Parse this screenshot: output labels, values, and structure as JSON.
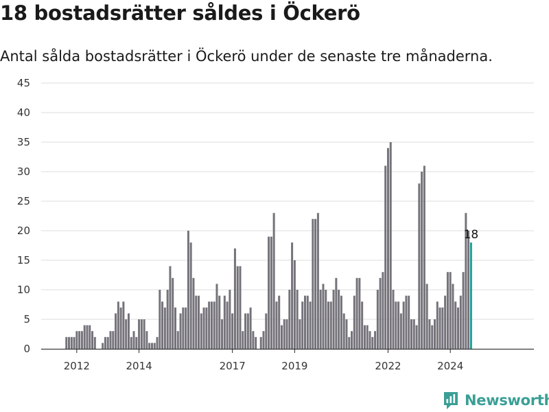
{
  "header": {
    "title": "18 bostadsrätter såldes i Öckerö",
    "subtitle": "Antal sålda bostadsrätter i Öckerö under de senaste tre månaderna."
  },
  "brand": {
    "name": "Newsworthy"
  },
  "colors": {
    "bar": "#75737a",
    "highlight": "#1fa197",
    "grid": "#dddddd",
    "brand": "#3a9f96"
  },
  "chart_data": {
    "type": "bar",
    "title": "18 bostadsrätter såldes i Öckerö",
    "subtitle": "Antal sålda bostadsrätter i Öckerö under de senaste tre månaderna.",
    "xlabel": "",
    "ylabel": "",
    "ylim": [
      0,
      45
    ],
    "yticks": [
      0,
      5,
      10,
      15,
      20,
      25,
      30,
      35,
      40,
      45
    ],
    "xticks": [
      "2012",
      "2014",
      "2017",
      "2019",
      "2022",
      "2024"
    ],
    "grid": true,
    "start": "2011-01",
    "highlight_label": "18",
    "categories": [
      "2011-01",
      "2011-02",
      "2011-03",
      "2011-04",
      "2011-05",
      "2011-06",
      "2011-07",
      "2011-08",
      "2011-09",
      "2011-10",
      "2011-11",
      "2011-12",
      "2012-01",
      "2012-02",
      "2012-03",
      "2012-04",
      "2012-05",
      "2012-06",
      "2012-07",
      "2012-08",
      "2012-09",
      "2012-10",
      "2012-11",
      "2012-12",
      "2013-01",
      "2013-02",
      "2013-03",
      "2013-04",
      "2013-05",
      "2013-06",
      "2013-07",
      "2013-08",
      "2013-09",
      "2013-10",
      "2013-11",
      "2013-12",
      "2014-01",
      "2014-02",
      "2014-03",
      "2014-04",
      "2014-05",
      "2014-06",
      "2014-07",
      "2014-08",
      "2014-09",
      "2014-10",
      "2014-11",
      "2014-12",
      "2015-01",
      "2015-02",
      "2015-03",
      "2015-04",
      "2015-05",
      "2015-06",
      "2015-07",
      "2015-08",
      "2015-09",
      "2015-10",
      "2015-11",
      "2015-12",
      "2016-01",
      "2016-02",
      "2016-03",
      "2016-04",
      "2016-05",
      "2016-06",
      "2016-07",
      "2016-08",
      "2016-09",
      "2016-10",
      "2016-11",
      "2016-12",
      "2017-01",
      "2017-02",
      "2017-03",
      "2017-04",
      "2017-05",
      "2017-06",
      "2017-07",
      "2017-08",
      "2017-09",
      "2017-10",
      "2017-11",
      "2017-12",
      "2018-01",
      "2018-02",
      "2018-03",
      "2018-04",
      "2018-05",
      "2018-06",
      "2018-07",
      "2018-08",
      "2018-09",
      "2018-10",
      "2018-11",
      "2018-12",
      "2019-01",
      "2019-02",
      "2019-03",
      "2019-04",
      "2019-05",
      "2019-06",
      "2019-07",
      "2019-08",
      "2019-09",
      "2019-10",
      "2019-11",
      "2019-12",
      "2020-01",
      "2020-02",
      "2020-03",
      "2020-04",
      "2020-05",
      "2020-06",
      "2020-07",
      "2020-08",
      "2020-09",
      "2020-10",
      "2020-11",
      "2020-12",
      "2021-01",
      "2021-02",
      "2021-03",
      "2021-04",
      "2021-05",
      "2021-06",
      "2021-07",
      "2021-08",
      "2021-09",
      "2021-10",
      "2021-11",
      "2021-12",
      "2022-01",
      "2022-02",
      "2022-03",
      "2022-04",
      "2022-05",
      "2022-06",
      "2022-07",
      "2022-08",
      "2022-09",
      "2022-10",
      "2022-11",
      "2022-12",
      "2023-01",
      "2023-02",
      "2023-03",
      "2023-04",
      "2023-05",
      "2023-06",
      "2023-07",
      "2023-08",
      "2023-09",
      "2023-10",
      "2023-11",
      "2023-12",
      "2024-01",
      "2024-02",
      "2024-03",
      "2024-04",
      "2024-05",
      "2024-06",
      "2024-07",
      "2024-08",
      "2024-09"
    ],
    "values": [
      0,
      0,
      0,
      0,
      0,
      0,
      0,
      0,
      2,
      2,
      2,
      2,
      3,
      3,
      3,
      4,
      4,
      4,
      3,
      2,
      0,
      0,
      1,
      2,
      2,
      3,
      3,
      6,
      8,
      7,
      8,
      5,
      6,
      2,
      3,
      2,
      5,
      5,
      5,
      3,
      1,
      1,
      1,
      2,
      10,
      8,
      7,
      10,
      14,
      12,
      7,
      3,
      6,
      7,
      7,
      20,
      18,
      12,
      9,
      9,
      6,
      7,
      7,
      8,
      8,
      8,
      11,
      9,
      5,
      9,
      8,
      10,
      6,
      17,
      14,
      14,
      3,
      6,
      6,
      7,
      3,
      2,
      0,
      2,
      3,
      6,
      19,
      19,
      23,
      8,
      9,
      4,
      5,
      5,
      10,
      18,
      15,
      10,
      5,
      8,
      9,
      9,
      8,
      22,
      22,
      23,
      10,
      11,
      10,
      8,
      8,
      10,
      12,
      10,
      9,
      6,
      5,
      2,
      3,
      9,
      12,
      12,
      8,
      4,
      4,
      3,
      2,
      3,
      10,
      12,
      13,
      31,
      34,
      35,
      10,
      8,
      8,
      6,
      8,
      9,
      9,
      5,
      5,
      4,
      28,
      30,
      31,
      11,
      5,
      4,
      5,
      8,
      7,
      7,
      9,
      13,
      13,
      11,
      8,
      7,
      9,
      13,
      23,
      20,
      18
    ]
  }
}
